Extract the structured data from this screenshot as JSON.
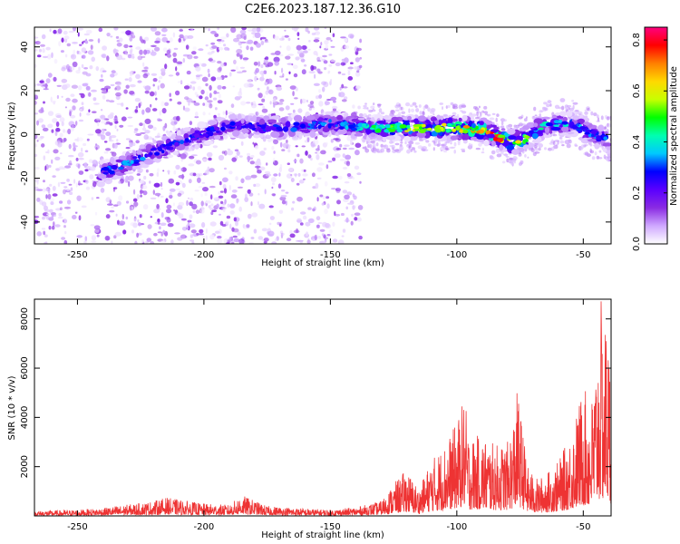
{
  "title": "C2E6.2023.187.12.36.G10",
  "chart_data": [
    {
      "type": "heatmap",
      "xlabel": "Height of straight line (km)",
      "ylabel": "Frequency (Hz)",
      "xlim": [
        -267,
        -39
      ],
      "ylim": [
        -50,
        49
      ],
      "xticks": [
        -250,
        -200,
        -150,
        -100,
        -50
      ],
      "yticks": [
        -40,
        -20,
        0,
        20,
        40
      ],
      "colorbar": {
        "label": "Normalized spectral amplitude",
        "range": [
          0.0,
          0.85
        ],
        "ticks": [
          0.0,
          0.2,
          0.4,
          0.6,
          0.8
        ],
        "colors": [
          "#ffffff",
          "#cfa8ff",
          "#8a2be2",
          "#5a00ff",
          "#0000ff",
          "#00c8ff",
          "#00ffb0",
          "#00ff00",
          "#c8ff00",
          "#ffd800",
          "#ff7f00",
          "#ff0000",
          "#ff0080"
        ]
      },
      "ridge": {
        "x": [
          -241,
          -230,
          -220,
          -213,
          -190,
          -170,
          -150,
          -135,
          -120,
          -100,
          -90,
          -80,
          -75,
          -65,
          -55,
          -40
        ],
        "y": [
          -18,
          -13,
          -8,
          -5,
          4,
          3,
          5,
          3,
          3,
          3,
          2,
          -3,
          -3,
          4,
          5,
          -3
        ],
        "amplitude": [
          0.3,
          0.32,
          0.3,
          0.28,
          0.25,
          0.28,
          0.3,
          0.4,
          0.55,
          0.6,
          0.65,
          0.75,
          0.55,
          0.4,
          0.35,
          0.3
        ]
      },
      "noise_region_x": [
        -267,
        -138
      ]
    },
    {
      "type": "line",
      "xlabel": "Height of straight line (km)",
      "ylabel": "SNR (10 * v/v)",
      "xlim": [
        -267,
        -39
      ],
      "ylim": [
        0,
        8800
      ],
      "xticks": [
        -250,
        -200,
        -150,
        -100,
        -50
      ],
      "yticks": [
        2000,
        4000,
        6000,
        8000
      ],
      "color": "#ee3333",
      "envelope": {
        "x": [
          -267,
          -250,
          -240,
          -220,
          -215,
          -200,
          -190,
          -185,
          -175,
          -160,
          -150,
          -140,
          -130,
          -125,
          -120,
          -115,
          -110,
          -105,
          -100,
          -97,
          -95,
          -90,
          -85,
          -80,
          -78,
          -76,
          -72,
          -68,
          -65,
          -60,
          -55,
          -50,
          -47,
          -45,
          -43,
          -42,
          -41,
          -39
        ],
        "y": [
          200,
          250,
          320,
          600,
          750,
          500,
          450,
          850,
          400,
          300,
          250,
          350,
          600,
          1300,
          1900,
          1100,
          2300,
          2900,
          3800,
          4900,
          3200,
          3300,
          2900,
          3000,
          3700,
          5200,
          2000,
          1500,
          1700,
          2200,
          3300,
          5300,
          4500,
          6300,
          8800,
          7500,
          8300,
          6000
        ]
      }
    }
  ]
}
